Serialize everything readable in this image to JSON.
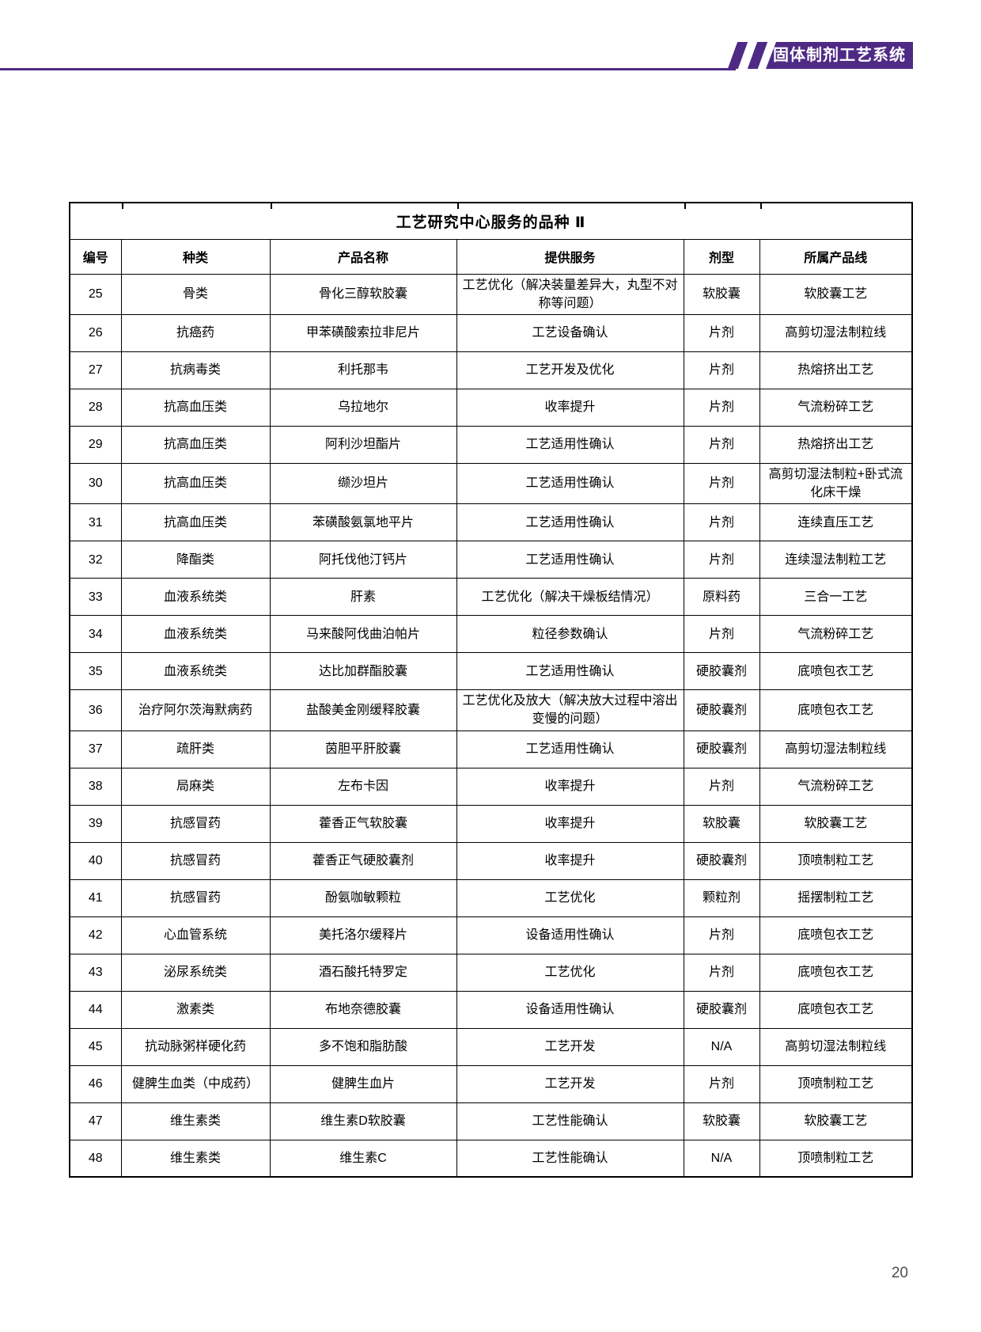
{
  "header": {
    "banner_text": "固体制剂工艺系统",
    "accent_color": "#4E2A85"
  },
  "table": {
    "title": "工艺研究中心服务的品种 Ⅱ",
    "columns": [
      "编号",
      "种类",
      "产品名称",
      "提供服务",
      "剂型",
      "所属产品线"
    ],
    "rows": [
      [
        "25",
        "骨类",
        "骨化三醇软胶囊",
        "工艺优化（解决装量差异大，丸型不对称等问题）",
        "软胶囊",
        "软胶囊工艺"
      ],
      [
        "26",
        "抗癌药",
        "甲苯磺酸索拉非尼片",
        "工艺设备确认",
        "片剂",
        "高剪切湿法制粒线"
      ],
      [
        "27",
        "抗病毒类",
        "利托那韦",
        "工艺开发及优化",
        "片剂",
        "热熔挤出工艺"
      ],
      [
        "28",
        "抗高血压类",
        "乌拉地尔",
        "收率提升",
        "片剂",
        "气流粉碎工艺"
      ],
      [
        "29",
        "抗高血压类",
        "阿利沙坦酯片",
        "工艺适用性确认",
        "片剂",
        "热熔挤出工艺"
      ],
      [
        "30",
        "抗高血压类",
        "缬沙坦片",
        "工艺适用性确认",
        "片剂",
        "高剪切湿法制粒+卧式流化床干燥"
      ],
      [
        "31",
        "抗高血压类",
        "苯磺酸氨氯地平片",
        "工艺适用性确认",
        "片剂",
        "连续直压工艺"
      ],
      [
        "32",
        "降酯类",
        "阿托伐他汀钙片",
        "工艺适用性确认",
        "片剂",
        "连续湿法制粒工艺"
      ],
      [
        "33",
        "血液系统类",
        "肝素",
        "工艺优化（解决干燥板结情况）",
        "原料药",
        "三合一工艺"
      ],
      [
        "34",
        "血液系统类",
        "马来酸阿伐曲泊帕片",
        "粒径参数确认",
        "片剂",
        "气流粉碎工艺"
      ],
      [
        "35",
        "血液系统类",
        "达比加群酯胶囊",
        "工艺适用性确认",
        "硬胶囊剂",
        "底喷包衣工艺"
      ],
      [
        "36",
        "治疗阿尔茨海默病药",
        "盐酸美金刚缓释胶囊",
        "工艺优化及放大（解决放大过程中溶出变慢的问题）",
        "硬胶囊剂",
        "底喷包衣工艺"
      ],
      [
        "37",
        "疏肝类",
        "茵胆平肝胶囊",
        "工艺适用性确认",
        "硬胶囊剂",
        "高剪切湿法制粒线"
      ],
      [
        "38",
        "局麻类",
        "左布卡因",
        "收率提升",
        "片剂",
        "气流粉碎工艺"
      ],
      [
        "39",
        "抗感冒药",
        "藿香正气软胶囊",
        "收率提升",
        "软胶囊",
        "软胶囊工艺"
      ],
      [
        "40",
        "抗感冒药",
        "藿香正气硬胶囊剂",
        "收率提升",
        "硬胶囊剂",
        "顶喷制粒工艺"
      ],
      [
        "41",
        "抗感冒药",
        "酚氨咖敏颗粒",
        "工艺优化",
        "颗粒剂",
        "摇摆制粒工艺"
      ],
      [
        "42",
        "心血管系统",
        "美托洛尔缓释片",
        "设备适用性确认",
        "片剂",
        "底喷包衣工艺"
      ],
      [
        "43",
        "泌尿系统类",
        "酒石酸托特罗定",
        "工艺优化",
        "片剂",
        "底喷包衣工艺"
      ],
      [
        "44",
        "激素类",
        "布地奈德胶囊",
        "设备适用性确认",
        "硬胶囊剂",
        "底喷包衣工艺"
      ],
      [
        "45",
        "抗动脉粥样硬化药",
        "多不饱和脂肪酸",
        "工艺开发",
        "N/A",
        "高剪切湿法制粒线"
      ],
      [
        "46",
        "健脾生血类（中成药）",
        "健脾生血片",
        "工艺开发",
        "片剂",
        "顶喷制粒工艺"
      ],
      [
        "47",
        "维生素类",
        "维生素D软胶囊",
        "工艺性能确认",
        "软胶囊",
        "软胶囊工艺"
      ],
      [
        "48",
        "维生素类",
        "维生素C",
        "工艺性能确认",
        "N/A",
        "顶喷制粒工艺"
      ]
    ]
  },
  "footer": {
    "page_number": "20"
  }
}
